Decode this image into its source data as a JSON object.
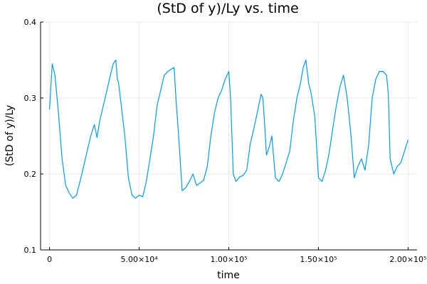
{
  "chart_data": {
    "type": "line",
    "title": "(StD of y)/Ly vs. time",
    "xlabel": "time",
    "ylabel": "(StD of y)/Ly",
    "xlim": [
      -5000,
      205000
    ],
    "ylim": [
      0.1,
      0.4
    ],
    "x_ticks": [
      0,
      50000,
      100000,
      150000,
      200000
    ],
    "x_tick_labels": [
      "0",
      "5.00×10⁴",
      "1.00×10⁵",
      "1.50×10⁵",
      "2.00×10⁵"
    ],
    "y_ticks": [
      0.1,
      0.2,
      0.3,
      0.4
    ],
    "y_tick_labels": [
      "0.1",
      "0.2",
      "0.3",
      "0.4"
    ],
    "grid": true,
    "legend": "none",
    "series": [
      {
        "color": "#009af9",
        "x": [
          0,
          1500,
          3000,
          5000,
          7000,
          9000,
          11000,
          13000,
          15000,
          17000,
          19000,
          21000,
          23000,
          25000,
          26500,
          28000,
          30000,
          32000,
          34000,
          35500,
          37000,
          37800,
          38500,
          40000,
          42000,
          44000,
          46000,
          48000,
          50000,
          52000,
          54000,
          56000,
          58000,
          60000,
          62000,
          64000,
          66000,
          68000,
          69500,
          70500,
          72000,
          74000,
          76000,
          78000,
          80000,
          82000,
          84000,
          86000,
          88000,
          90000,
          92000,
          94000,
          96000,
          98000,
          100000,
          101000,
          102500,
          104000,
          106000,
          108000,
          110000,
          112000,
          114000,
          116000,
          118000,
          119000,
          120000,
          121000,
          122500,
          124000,
          126000,
          128000,
          130000,
          132000,
          134000,
          136000,
          138000,
          140000,
          141500,
          143000,
          144500,
          146000,
          148000,
          150000,
          152000,
          154000,
          156000,
          158000,
          160000,
          162000,
          164000,
          166000,
          168000,
          170000,
          172000,
          174000,
          176000,
          178000,
          180000,
          182000,
          184000,
          186000,
          188000,
          189000,
          190000,
          192000,
          194000,
          196000,
          198000,
          200000
        ],
        "values": [
          0.285,
          0.345,
          0.33,
          0.28,
          0.22,
          0.185,
          0.175,
          0.168,
          0.172,
          0.19,
          0.21,
          0.23,
          0.25,
          0.265,
          0.248,
          0.27,
          0.29,
          0.31,
          0.33,
          0.345,
          0.35,
          0.325,
          0.32,
          0.29,
          0.25,
          0.195,
          0.172,
          0.168,
          0.172,
          0.17,
          0.19,
          0.22,
          0.25,
          0.29,
          0.31,
          0.33,
          0.335,
          0.338,
          0.34,
          0.3,
          0.25,
          0.178,
          0.182,
          0.19,
          0.2,
          0.185,
          0.188,
          0.192,
          0.21,
          0.25,
          0.28,
          0.3,
          0.31,
          0.325,
          0.335,
          0.3,
          0.2,
          0.19,
          0.196,
          0.198,
          0.205,
          0.24,
          0.26,
          0.282,
          0.305,
          0.3,
          0.265,
          0.225,
          0.235,
          0.25,
          0.195,
          0.19,
          0.2,
          0.215,
          0.23,
          0.27,
          0.3,
          0.32,
          0.34,
          0.35,
          0.32,
          0.305,
          0.275,
          0.195,
          0.19,
          0.205,
          0.228,
          0.26,
          0.29,
          0.315,
          0.33,
          0.3,
          0.255,
          0.195,
          0.21,
          0.22,
          0.205,
          0.238,
          0.3,
          0.325,
          0.335,
          0.335,
          0.33,
          0.305,
          0.22,
          0.2,
          0.21,
          0.215,
          0.23,
          0.245
        ]
      }
    ]
  }
}
